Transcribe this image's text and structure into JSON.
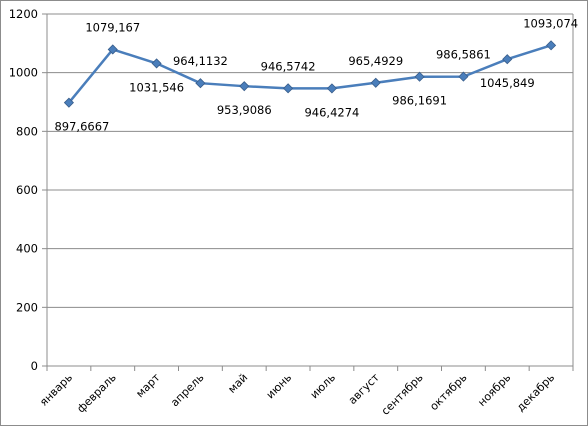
{
  "chart_data": {
    "type": "line",
    "categories": [
      "январь",
      "февраль",
      "март",
      "апрель",
      "май",
      "июнь",
      "июль",
      "август",
      "сентябрь",
      "октябрь",
      "ноябрь",
      "декабрь"
    ],
    "series": [
      {
        "values": [
          897.6667,
          1079.167,
          1031.546,
          964.1132,
          953.9086,
          946.5742,
          946.4274,
          965.4929,
          986.1691,
          986.5861,
          1045.849,
          1093.074
        ],
        "value_labels": [
          "897,6667",
          "1079,167",
          "1031,546",
          "964,1132",
          "953,9086",
          "946,5742",
          "946,4274",
          "965,4929",
          "986,1691",
          "986,5861",
          "1045,849",
          "1093,074"
        ],
        "color": "#4a7ebb"
      }
    ],
    "yticks": [
      "0",
      "200",
      "400",
      "600",
      "800",
      "1000",
      "1200"
    ],
    "ylim": [
      0,
      1200
    ],
    "grid": true,
    "legend": false,
    "title": "",
    "xlabel": "",
    "ylabel": ""
  }
}
